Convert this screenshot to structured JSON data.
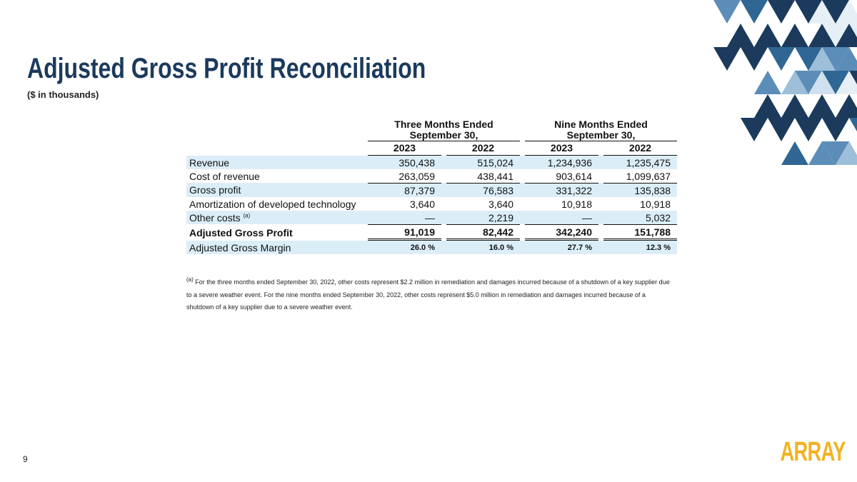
{
  "header": {
    "title": "Adjusted Gross Profit Reconciliation",
    "subtitle": "($ in thousands)"
  },
  "table": {
    "groups": [
      [
        "Three Months Ended",
        "September 30,"
      ],
      [
        "Nine Months Ended",
        "September 30,"
      ]
    ],
    "columns": [
      "2023",
      "2022",
      "2023",
      "2022"
    ],
    "rows": [
      {
        "label": "Revenue",
        "values": [
          "350,438",
          "515,024",
          "1,234,936",
          "1,235,475"
        ]
      },
      {
        "label": "Cost of revenue",
        "values": [
          "263,059",
          "438,441",
          "903,614",
          "1,099,637"
        ]
      },
      {
        "label": "Gross profit",
        "values": [
          "87,379",
          "76,583",
          "331,322",
          "135,838"
        ]
      },
      {
        "label": "Amortization of developed technology",
        "values": [
          "3,640",
          "3,640",
          "10,918",
          "10,918"
        ]
      },
      {
        "label": "Other costs",
        "note": "(a)",
        "values": [
          "—",
          "2,219",
          "—",
          "5,032"
        ]
      },
      {
        "label": "Adjusted Gross Profit",
        "values": [
          "91,019",
          "82,442",
          "342,240",
          "151,788"
        ]
      },
      {
        "label": "Adjusted Gross Margin",
        "values": [
          "26.0 %",
          "16.0 %",
          "27.7 %",
          "12.3 %"
        ]
      }
    ]
  },
  "footnote": {
    "marker": "(a)",
    "text": "For the three months ended September 30, 2022, other costs represent $2.2 million in remediation and damages incurred because of a shutdown of a key supplier due to a severe weather event. For the nine months ended September 30, 2022, other costs represent $5.0 million in remediation and damages incurred because of a shutdown of a key supplier due to a severe weather event."
  },
  "page_number": "9",
  "logo": "ARRAY"
}
